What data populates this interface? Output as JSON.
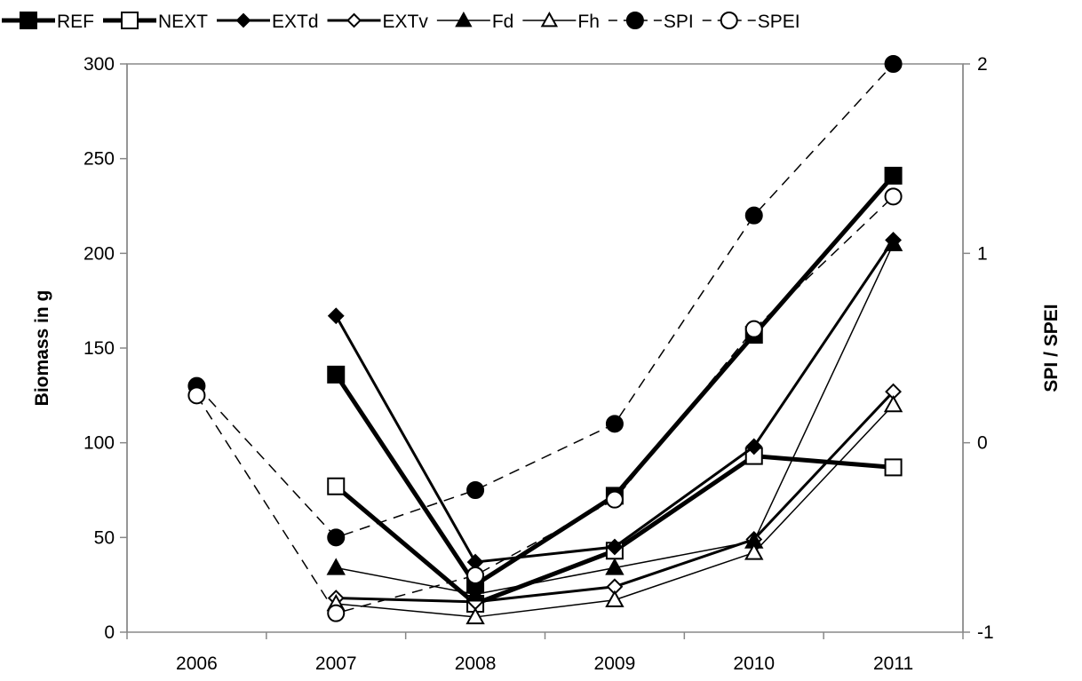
{
  "chart_data": {
    "type": "line",
    "categories": [
      "2006",
      "2007",
      "2008",
      "2009",
      "2010",
      "2011"
    ],
    "ylabel": "Biomass in g",
    "y2label": "SPI / SPEI",
    "ylim": [
      0,
      300
    ],
    "yticks": [
      "0",
      "50",
      "100",
      "150",
      "200",
      "250",
      "300"
    ],
    "y2lim": [
      -1,
      2
    ],
    "y2ticks": [
      "-1",
      "0",
      "1",
      "2"
    ],
    "grid": false,
    "legend_position": "top",
    "series": [
      {
        "name": "REF",
        "axis": "left",
        "style": {
          "line": "solid",
          "width": 5,
          "marker": "square",
          "fill": "filled"
        },
        "values": [
          null,
          136,
          25,
          72,
          157,
          241
        ]
      },
      {
        "name": "NEXT",
        "axis": "left",
        "style": {
          "line": "solid",
          "width": 5,
          "marker": "square",
          "fill": "open"
        },
        "values": [
          null,
          77,
          15,
          43,
          93,
          87
        ]
      },
      {
        "name": "EXTd",
        "axis": "left",
        "style": {
          "line": "solid",
          "width": 3,
          "marker": "diamond",
          "fill": "filled"
        },
        "values": [
          null,
          167,
          37,
          45,
          98,
          207
        ]
      },
      {
        "name": "EXTv",
        "axis": "left",
        "style": {
          "line": "solid",
          "width": 3,
          "marker": "diamond",
          "fill": "open"
        },
        "values": [
          null,
          18,
          16,
          24,
          49,
          127
        ]
      },
      {
        "name": "Fd",
        "axis": "left",
        "style": {
          "line": "solid",
          "width": 1.5,
          "marker": "triangle",
          "fill": "filled"
        },
        "values": [
          null,
          34,
          20,
          34,
          48,
          205
        ]
      },
      {
        "name": "Fh",
        "axis": "left",
        "style": {
          "line": "solid",
          "width": 1.5,
          "marker": "triangle",
          "fill": "open"
        },
        "values": [
          null,
          15,
          8,
          17,
          42,
          120
        ]
      },
      {
        "name": "SPI",
        "axis": "right",
        "style": {
          "line": "dashed",
          "width": 1.5,
          "marker": "circle",
          "fill": "filled"
        },
        "values": [
          0.3,
          -0.5,
          -0.25,
          0.1,
          1.2,
          2.0
        ]
      },
      {
        "name": "SPEI",
        "axis": "right",
        "style": {
          "line": "dashed",
          "width": 1.5,
          "marker": "circle",
          "fill": "open"
        },
        "values": [
          0.25,
          -0.9,
          -0.7,
          -0.3,
          0.6,
          1.3
        ]
      }
    ]
  }
}
